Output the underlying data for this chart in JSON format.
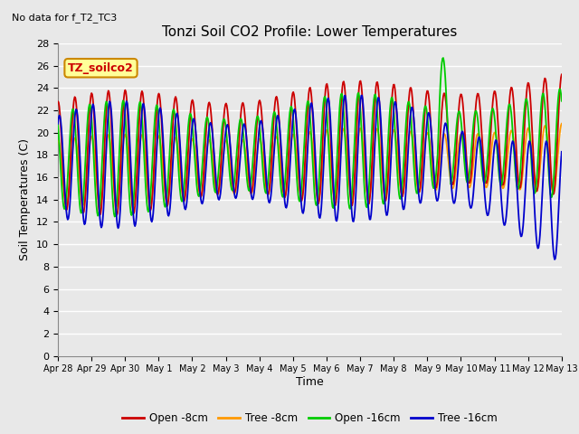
{
  "title": "Tonzi Soil CO2 Profile: Lower Temperatures",
  "subtitle": "No data for f_T2_TC3",
  "ylabel": "Soil Temperatures (C)",
  "xlabel": "Time",
  "legend_label": "TZ_soilco2",
  "ylim": [
    0,
    28
  ],
  "yticks": [
    0,
    2,
    4,
    6,
    8,
    10,
    12,
    14,
    16,
    18,
    20,
    22,
    24,
    26,
    28
  ],
  "xtick_labels": [
    "Apr 28",
    "Apr 29",
    "Apr 30",
    "May 1",
    "May 2",
    "May 3",
    "May 4",
    "May 5",
    "May 6",
    "May 7",
    "May 8",
    "May 9",
    "May 10",
    "May 11",
    "May 12",
    "May 13"
  ],
  "colors": {
    "open_8cm": "#cc0000",
    "tree_8cm": "#ff9900",
    "open_16cm": "#00cc00",
    "tree_16cm": "#0000cc"
  },
  "legend_items": [
    "Open -8cm",
    "Tree -8cm",
    "Open -16cm",
    "Tree -16cm"
  ],
  "bg_color": "#e8e8e8",
  "plot_bg": "#e8e8e8",
  "grid_color": "#ffffff",
  "n_days": 15,
  "pts_per_day": 48
}
